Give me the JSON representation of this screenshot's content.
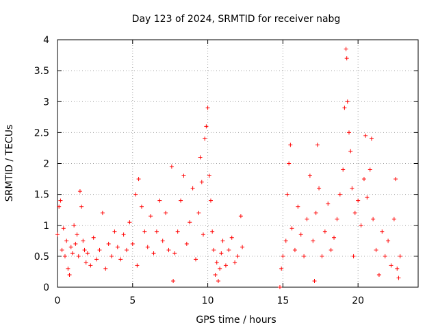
{
  "chart_data": {
    "type": "scatter",
    "title": "Day 123 of 2024, SRMTID for receiver nabg",
    "xlabel": "GPS time / hours",
    "ylabel": "SRMTID / TECUs",
    "xlim": [
      0,
      24
    ],
    "ylim": [
      0,
      4
    ],
    "xticks": [
      0,
      5,
      10,
      15,
      20
    ],
    "xtick_labels": [
      "0",
      "5",
      "10",
      "15",
      "20"
    ],
    "yticks": [
      0,
      0.5,
      1,
      1.5,
      2,
      2.5,
      3,
      3.5,
      4
    ],
    "ytick_labels": [
      "0",
      "0.5",
      "1",
      "1.5",
      "2",
      "2.5",
      "3",
      "3.5",
      "4"
    ],
    "grid": true,
    "marker": "plus",
    "color": "#ff0000",
    "series": [
      {
        "name": "SRMTID",
        "points": [
          [
            0.0,
            0.85
          ],
          [
            0.1,
            1.3
          ],
          [
            0.2,
            1.4
          ],
          [
            0.3,
            0.6
          ],
          [
            0.4,
            0.95
          ],
          [
            0.5,
            0.5
          ],
          [
            0.6,
            0.75
          ],
          [
            0.7,
            0.3
          ],
          [
            0.8,
            0.2
          ],
          [
            0.9,
            0.65
          ],
          [
            1.0,
            0.55
          ],
          [
            1.1,
            1.0
          ],
          [
            1.2,
            0.7
          ],
          [
            1.3,
            0.85
          ],
          [
            1.4,
            0.5
          ],
          [
            1.5,
            1.55
          ],
          [
            1.6,
            1.3
          ],
          [
            1.7,
            0.75
          ],
          [
            1.8,
            0.6
          ],
          [
            1.9,
            0.4
          ],
          [
            2.0,
            0.55
          ],
          [
            2.2,
            0.35
          ],
          [
            2.4,
            0.8
          ],
          [
            2.6,
            0.45
          ],
          [
            2.8,
            0.6
          ],
          [
            3.0,
            1.2
          ],
          [
            3.2,
            0.3
          ],
          [
            3.4,
            0.7
          ],
          [
            3.6,
            0.5
          ],
          [
            3.8,
            0.9
          ],
          [
            4.0,
            0.65
          ],
          [
            4.2,
            0.45
          ],
          [
            4.4,
            0.85
          ],
          [
            4.6,
            0.6
          ],
          [
            4.8,
            1.05
          ],
          [
            5.0,
            0.7
          ],
          [
            5.2,
            1.5
          ],
          [
            5.3,
            0.35
          ],
          [
            5.4,
            1.75
          ],
          [
            5.6,
            1.3
          ],
          [
            5.8,
            0.9
          ],
          [
            6.0,
            0.65
          ],
          [
            6.2,
            1.15
          ],
          [
            6.4,
            0.55
          ],
          [
            6.6,
            0.9
          ],
          [
            6.8,
            1.4
          ],
          [
            7.0,
            0.75
          ],
          [
            7.2,
            1.2
          ],
          [
            7.4,
            0.6
          ],
          [
            7.6,
            1.95
          ],
          [
            7.7,
            0.1
          ],
          [
            7.8,
            0.55
          ],
          [
            8.0,
            0.9
          ],
          [
            8.2,
            1.4
          ],
          [
            8.4,
            1.8
          ],
          [
            8.6,
            0.7
          ],
          [
            8.8,
            1.05
          ],
          [
            9.0,
            1.6
          ],
          [
            9.2,
            0.45
          ],
          [
            9.4,
            1.2
          ],
          [
            9.5,
            2.1
          ],
          [
            9.6,
            1.7
          ],
          [
            9.7,
            0.85
          ],
          [
            9.8,
            2.4
          ],
          [
            9.9,
            2.6
          ],
          [
            10.0,
            2.9
          ],
          [
            10.1,
            1.8
          ],
          [
            10.2,
            1.4
          ],
          [
            10.3,
            0.9
          ],
          [
            10.4,
            0.6
          ],
          [
            10.5,
            0.2
          ],
          [
            10.6,
            0.4
          ],
          [
            10.7,
            0.1
          ],
          [
            10.8,
            0.3
          ],
          [
            10.9,
            0.55
          ],
          [
            11.0,
            0.75
          ],
          [
            11.2,
            0.35
          ],
          [
            11.4,
            0.6
          ],
          [
            11.6,
            0.8
          ],
          [
            11.8,
            0.4
          ],
          [
            12.0,
            0.5
          ],
          [
            12.2,
            1.15
          ],
          [
            12.3,
            0.65
          ],
          [
            14.8,
            0.0
          ],
          [
            14.9,
            0.3
          ],
          [
            15.0,
            0.5
          ],
          [
            15.2,
            0.75
          ],
          [
            15.3,
            1.5
          ],
          [
            15.4,
            2.0
          ],
          [
            15.5,
            2.3
          ],
          [
            15.6,
            0.95
          ],
          [
            15.8,
            0.6
          ],
          [
            16.0,
            1.3
          ],
          [
            16.2,
            0.85
          ],
          [
            16.4,
            0.5
          ],
          [
            16.6,
            1.1
          ],
          [
            16.8,
            1.8
          ],
          [
            17.0,
            0.75
          ],
          [
            17.1,
            0.1
          ],
          [
            17.2,
            1.2
          ],
          [
            17.3,
            2.3
          ],
          [
            17.4,
            1.6
          ],
          [
            17.6,
            0.5
          ],
          [
            17.8,
            0.9
          ],
          [
            18.0,
            1.35
          ],
          [
            18.2,
            0.6
          ],
          [
            18.4,
            0.8
          ],
          [
            18.6,
            1.1
          ],
          [
            18.8,
            1.5
          ],
          [
            19.0,
            1.9
          ],
          [
            19.1,
            2.9
          ],
          [
            19.2,
            3.85
          ],
          [
            19.25,
            3.7
          ],
          [
            19.3,
            3.0
          ],
          [
            19.4,
            2.5
          ],
          [
            19.5,
            2.2
          ],
          [
            19.6,
            1.6
          ],
          [
            19.7,
            0.5
          ],
          [
            19.8,
            1.2
          ],
          [
            20.0,
            1.4
          ],
          [
            20.2,
            1.0
          ],
          [
            20.4,
            1.75
          ],
          [
            20.5,
            2.45
          ],
          [
            20.6,
            1.45
          ],
          [
            20.8,
            1.9
          ],
          [
            20.9,
            2.4
          ],
          [
            21.0,
            1.1
          ],
          [
            21.2,
            0.6
          ],
          [
            21.4,
            0.2
          ],
          [
            21.6,
            0.9
          ],
          [
            21.8,
            0.5
          ],
          [
            22.0,
            0.75
          ],
          [
            22.2,
            0.35
          ],
          [
            22.4,
            1.1
          ],
          [
            22.5,
            1.75
          ],
          [
            22.6,
            0.3
          ],
          [
            22.7,
            0.15
          ],
          [
            22.8,
            0.5
          ]
        ]
      }
    ]
  }
}
